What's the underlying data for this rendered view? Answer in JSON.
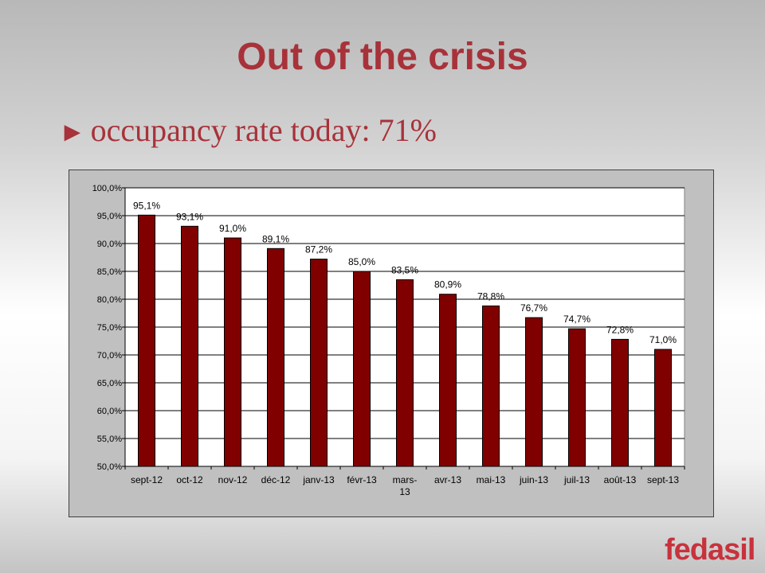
{
  "slide": {
    "title": "Out of the crisis",
    "bullet_marker": "►",
    "bullet_text": "occupancy rate today: 71%",
    "logo_text": "fedasil"
  },
  "colors": {
    "title": "#a8323a",
    "bar": "#800000",
    "plot_bg": "#ffffff",
    "chart_bg": "#c0c0c0",
    "logo": "#c8323c"
  },
  "chart_data": {
    "type": "bar",
    "categories": [
      "sept-12",
      "oct-12",
      "nov-12",
      "déc-12",
      "janv-13",
      "févr-13",
      "mars-13",
      "avr-13",
      "mai-13",
      "juin-13",
      "juil-13",
      "août-13",
      "sept-13"
    ],
    "values": [
      95.1,
      93.1,
      91.0,
      89.1,
      87.2,
      85.0,
      83.5,
      80.9,
      78.8,
      76.7,
      74.7,
      72.8,
      71.0
    ],
    "data_labels": [
      "95,1%",
      "93,1%",
      "91,0%",
      "89,1%",
      "87,2%",
      "85,0%",
      "83,5%",
      "80,9%",
      "78,8%",
      "76,7%",
      "74,7%",
      "72,8%",
      "71,0%"
    ],
    "yticks": [
      50,
      55,
      60,
      65,
      70,
      75,
      80,
      85,
      90,
      95,
      100
    ],
    "ytick_labels": [
      "50,0%",
      "55,0%",
      "60,0%",
      "65,0%",
      "70,0%",
      "75,0%",
      "80,0%",
      "85,0%",
      "90,0%",
      "95,0%",
      "100,0%"
    ],
    "ylim": [
      50,
      100
    ],
    "grid": true,
    "legend": "none",
    "title": "",
    "xlabel": "",
    "ylabel": ""
  }
}
